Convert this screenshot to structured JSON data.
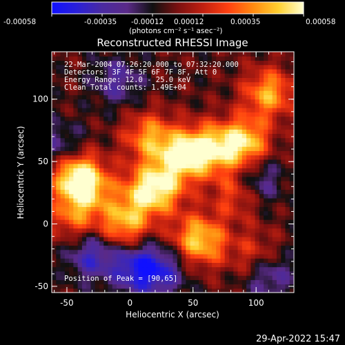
{
  "colors": {
    "background": "#000000",
    "foreground": "#ffffff",
    "colormap": [
      "#1010ff",
      "#2a20d8",
      "#4a2aa0",
      "#5a2a88",
      "#101010",
      "#7a1010",
      "#c02010",
      "#ff4010",
      "#ff8a10",
      "#ffd030",
      "#ffffd0"
    ]
  },
  "colorbar": {
    "ticks": [
      "-0.00058",
      "-0.00035",
      "-0.00012",
      "0.00012",
      "0.00035",
      "0.00058"
    ],
    "units": "(photons cm⁻² s⁻¹ asec⁻²)"
  },
  "chart_data": {
    "type": "heatmap",
    "title": "Reconstructed RHESSI Image",
    "xlabel": "Heliocentric X (arcsec)",
    "ylabel": "Heliocentric Y (arcsec)",
    "xlim": [
      -62,
      130
    ],
    "ylim": [
      -55,
      138
    ],
    "x_ticks": [
      -50,
      0,
      50,
      100
    ],
    "y_ticks": [
      -50,
      0,
      50,
      100
    ],
    "x_tick_labels": [
      "-50",
      "0",
      "50",
      "100"
    ],
    "y_tick_labels": [
      "-50",
      "0",
      "50",
      "100"
    ],
    "value_range": [
      -0.00058,
      0.00058
    ],
    "info_lines": [
      "22-Mar-2004 07:26:20.000 to 07:32:20.000",
      "Detectors: 3F 4F 5F 6F 7F 8F, Att 0",
      "Energy Range: 12.0 - 25.0 keV",
      "Clean     Total counts: 1.49E+04"
    ],
    "peak_label": "Position of Peak = [90,65]",
    "peak": [
      90,
      65
    ],
    "bright_sources": [
      {
        "x": 90,
        "y": 65,
        "value": 0.00058
      },
      {
        "x": 62,
        "y": 60,
        "value": 0.00052
      },
      {
        "x": 40,
        "y": 55,
        "value": 0.00048
      },
      {
        "x": 110,
        "y": 105,
        "value": 0.00045
      },
      {
        "x": -35,
        "y": 30,
        "value": 0.0005
      },
      {
        "x": -45,
        "y": 42,
        "value": 0.00044
      },
      {
        "x": 15,
        "y": 70,
        "value": 0.0004
      },
      {
        "x": 25,
        "y": 30,
        "value": 0.00042
      },
      {
        "x": -5,
        "y": 0,
        "value": 0.00046
      },
      {
        "x": 10,
        "y": 25,
        "value": 0.00035
      },
      {
        "x": 85,
        "y": 25,
        "value": 0.00032
      },
      {
        "x": 60,
        "y": -15,
        "value": 0.0003
      },
      {
        "x": -45,
        "y": 5,
        "value": 0.0003
      },
      {
        "x": 50,
        "y": -10,
        "value": 0.00028
      },
      {
        "x": 100,
        "y": -25,
        "value": 0.00025
      }
    ],
    "dark_sources": [
      {
        "x": -30,
        "y": -25,
        "value": -0.00035
      },
      {
        "x": 5,
        "y": -35,
        "value": -0.0004
      },
      {
        "x": 25,
        "y": -38,
        "value": -0.00032
      },
      {
        "x": 100,
        "y": 35,
        "value": -0.0003
      },
      {
        "x": -55,
        "y": 60,
        "value": -0.00028
      },
      {
        "x": 110,
        "y": -40,
        "value": -0.0003
      },
      {
        "x": -10,
        "y": 115,
        "value": -0.00025
      }
    ]
  },
  "footer": {
    "timestamp": "29-Apr-2022 15:47"
  }
}
